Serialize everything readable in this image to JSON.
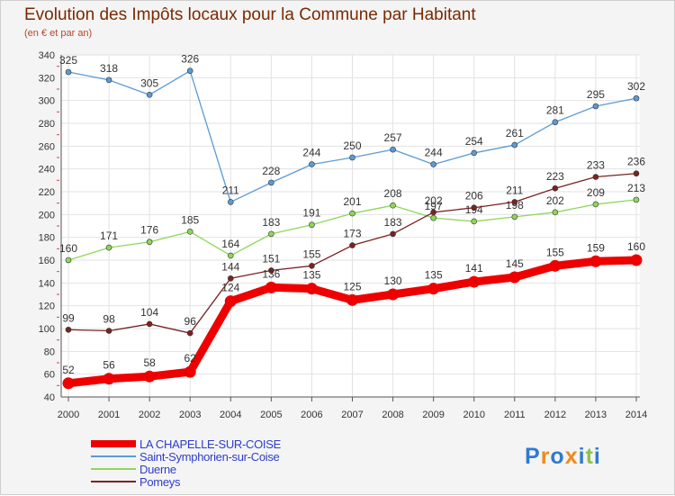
{
  "header": {
    "title": "Evolution des Impôts locaux pour la Commune par Habitant",
    "subtitle": "(en € et par an)"
  },
  "logo": {
    "text": "Proxiti"
  },
  "chart_data": {
    "type": "line",
    "title": "Evolution des Impôts locaux pour la Commune par Habitant",
    "subtitle": "(en € et par an)",
    "xlabel": "",
    "ylabel": "",
    "ylim": [
      40,
      340
    ],
    "ytick_step": 20,
    "grid": true,
    "legend_position": "bottom-left",
    "categories": [
      "2000",
      "2001",
      "2002",
      "2003",
      "2004",
      "2005",
      "2006",
      "2007",
      "2008",
      "2009",
      "2010",
      "2011",
      "2012",
      "2013",
      "2014"
    ],
    "series": [
      {
        "name": "Saint-Symphorien-sur-Coise",
        "color": "#5b9bd5",
        "values": [
          325,
          318,
          305,
          326,
          211,
          228,
          244,
          250,
          257,
          244,
          254,
          261,
          281,
          295,
          302
        ]
      },
      {
        "name": "Duerne",
        "color": "#8fd65a",
        "values": [
          160,
          171,
          176,
          185,
          164,
          183,
          191,
          201,
          208,
          197,
          194,
          198,
          202,
          209,
          213
        ]
      },
      {
        "name": "Pomeys",
        "color": "#7a2323",
        "values": [
          99,
          98,
          104,
          96,
          144,
          151,
          155,
          173,
          183,
          202,
          206,
          211,
          223,
          233,
          236
        ]
      },
      {
        "name": "LA CHAPELLE-SUR-COISE",
        "color": "#ee0000",
        "values": [
          52,
          56,
          58,
          62,
          124,
          136,
          135,
          125,
          130,
          135,
          141,
          145,
          155,
          159,
          160
        ]
      }
    ],
    "data_labels": [
      {
        "series": "Saint-Symphorien-sur-Coise",
        "labels": [
          "325",
          "318",
          "305",
          "326",
          "211",
          "228",
          "244",
          "250",
          "257",
          "244",
          "254",
          "261",
          "281",
          "295",
          "302"
        ]
      },
      {
        "series": "Duerne",
        "labels": [
          "160",
          "171",
          "176",
          "185",
          "164",
          "183",
          "191",
          "201",
          "208",
          "197",
          "194",
          "198",
          "202",
          "209",
          "213"
        ]
      },
      {
        "series": "Pomeys",
        "labels": [
          "99",
          "98",
          "104",
          "96",
          "144",
          "151",
          "155",
          "173",
          "183",
          "202",
          "206",
          "211",
          "223",
          "233",
          "236"
        ]
      },
      {
        "series": "LA CHAPELLE-SUR-COISE",
        "labels": [
          "52",
          "56",
          "58",
          "62",
          "124",
          "136",
          "135",
          "125",
          "130",
          "135",
          "141",
          "145",
          "155",
          "159",
          "160"
        ]
      }
    ],
    "legend_order": [
      "LA CHAPELLE-SUR-COISE",
      "Saint-Symphorien-sur-Coise",
      "Duerne",
      "Pomeys"
    ]
  }
}
